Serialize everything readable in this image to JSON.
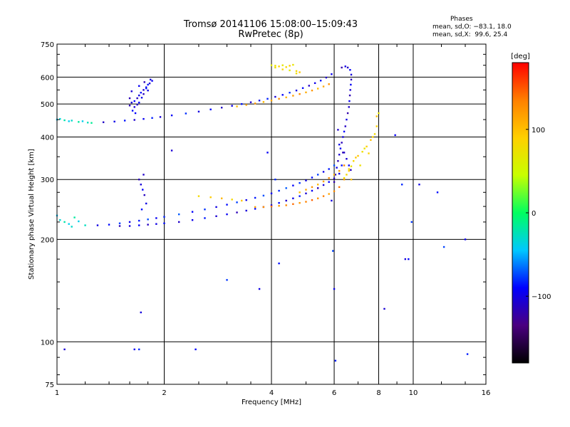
{
  "title_line1": "Tromsø 20141106 15:08:00–15:09:43",
  "title_line2": "RwPretec (8p)",
  "stats": {
    "title": "Phases",
    "line_o": "mean, sd,O: −83.1, 18.0",
    "line_x": "mean, sd,X:  99.6, 25.4"
  },
  "chart_data": {
    "type": "scatter",
    "xlabel": "Frequency [MHz]",
    "ylabel": "Stationary phase Virtual Height [km]",
    "x_scale": "log",
    "y_scale": "log",
    "xlim": [
      1,
      16
    ],
    "ylim": [
      75,
      750
    ],
    "x_ticks": [
      1,
      2,
      4,
      6,
      8,
      10,
      16
    ],
    "y_ticks": [
      75,
      100,
      200,
      300,
      400,
      500,
      600,
      750
    ],
    "x_grid": [
      2,
      4,
      6,
      8,
      10
    ],
    "y_grid": [
      100,
      200,
      300,
      400,
      500,
      600
    ],
    "grid": true,
    "colorbar": {
      "label": "[deg]",
      "range": [
        -180,
        180
      ],
      "ticks": [
        -100,
        0,
        100
      ],
      "colormap": [
        "#000000",
        "#4a0080",
        "#0000ff",
        "#00c8ff",
        "#00ff60",
        "#c8ff00",
        "#ffd000",
        "#ff8000",
        "#ff0000"
      ]
    },
    "series": [
      {
        "x": [
          1.35,
          1.45,
          1.55,
          1.65,
          1.75,
          1.85,
          1.95,
          2.1,
          2.3,
          2.5,
          2.7,
          2.9,
          3.1,
          3.3,
          3.5,
          3.7,
          3.9,
          4.1,
          4.3,
          4.5,
          4.7,
          4.9,
          5.1,
          5.3,
          5.5,
          5.7,
          5.9
        ],
        "y": [
          442,
          444,
          447,
          449,
          452,
          455,
          458,
          463,
          469,
          475,
          482,
          488,
          494,
          500,
          506,
          512,
          518,
          525,
          532,
          540,
          548,
          557,
          566,
          576,
          586,
          598,
          612
        ],
        "phase": -95
      },
      {
        "x": [
          3.2,
          3.4,
          3.6,
          3.8,
          4.0,
          4.2,
          4.4,
          4.6,
          4.8,
          5.0,
          5.2,
          5.4,
          5.6,
          5.8
        ],
        "y": [
          492,
          497,
          502,
          507,
          512,
          518,
          523,
          529,
          535,
          541,
          548,
          555,
          563,
          572
        ],
        "phase": 115
      },
      {
        "x": [
          1.0,
          1.02,
          1.05,
          1.08,
          1.1,
          1.15,
          1.18,
          1.22,
          1.25
        ],
        "y": [
          450,
          452,
          448,
          445,
          447,
          443,
          445,
          441,
          440
        ],
        "phase": -30
      },
      {
        "x": [
          1.6,
          1.62,
          1.65,
          1.68,
          1.7,
          1.72,
          1.75,
          1.78,
          1.8,
          1.82,
          1.85,
          1.6,
          1.65,
          1.7,
          1.75,
          1.8,
          1.63,
          1.68,
          1.73,
          1.78,
          1.62,
          1.7,
          1.76,
          1.83,
          1.66
        ],
        "y": [
          495,
          505,
          510,
          520,
          530,
          540,
          550,
          560,
          570,
          575,
          585,
          520,
          490,
          505,
          535,
          548,
          478,
          498,
          522,
          556,
          545,
          565,
          580,
          590,
          470
        ],
        "phase": -100
      },
      {
        "x": [
          4.0,
          4.1,
          4.2,
          4.3,
          4.4,
          4.5,
          4.6,
          4.7,
          4.8,
          4.1,
          4.3,
          4.5,
          4.7
        ],
        "y": [
          650,
          648,
          645,
          650,
          642,
          648,
          652,
          625,
          620,
          640,
          632,
          628,
          615
        ],
        "phase": 80
      },
      {
        "x": [
          6.0,
          6.05,
          6.1,
          6.15,
          6.2,
          6.25,
          6.3,
          6.35,
          6.4,
          6.45,
          6.5,
          6.55,
          6.6,
          6.62,
          6.64,
          6.66,
          6.68,
          6.7,
          6.7,
          6.65,
          6.55,
          6.45,
          6.3,
          6.15,
          6.2,
          6.35,
          6.5,
          6.6,
          6.68
        ],
        "y": [
          295,
          310,
          325,
          340,
          355,
          370,
          385,
          400,
          415,
          430,
          450,
          470,
          490,
          510,
          530,
          550,
          570,
          590,
          610,
          630,
          640,
          645,
          640,
          420,
          380,
          360,
          345,
          330,
          320
        ],
        "phase": -105
      },
      {
        "x": [
          6.4,
          6.5,
          6.6,
          6.7,
          6.8,
          7.0,
          7.2,
          7.4,
          7.6,
          7.8,
          7.9,
          8.0,
          6.6,
          6.9,
          7.3,
          7.7,
          6.7,
          7.1,
          7.5,
          7.9
        ],
        "y": [
          303,
          310,
          318,
          328,
          340,
          352,
          362,
          375,
          392,
          408,
          430,
          470,
          322,
          348,
          370,
          400,
          300,
          330,
          358,
          460
        ],
        "phase": 85
      },
      {
        "x": [
          1.5,
          1.6,
          1.7,
          1.8,
          1.9,
          2.0,
          2.2,
          2.4,
          2.6,
          2.8,
          3.0,
          3.2,
          3.4,
          3.6,
          3.8,
          4.0,
          4.2,
          4.4,
          4.6,
          4.8,
          5.0,
          5.2,
          5.4,
          5.6,
          5.8,
          6.0,
          6.2,
          6.3,
          6.4
        ],
        "y": [
          219,
          219,
          220,
          221,
          222,
          223,
          225,
          228,
          231,
          234,
          237,
          240,
          243,
          246,
          249,
          252,
          256,
          260,
          264,
          268,
          273,
          278,
          283,
          289,
          295,
          302,
          312,
          330,
          360
        ],
        "phase": -100
      },
      {
        "x": [
          1.3,
          1.4,
          1.5,
          1.6,
          1.7,
          1.8,
          1.9,
          2.0,
          2.2,
          2.4,
          2.6,
          2.8,
          3.0,
          3.2,
          3.4,
          3.6,
          3.8,
          4.0,
          4.2,
          4.4,
          4.6,
          4.8,
          5.0,
          5.2,
          5.4,
          5.6,
          5.8,
          6.0
        ],
        "y": [
          220,
          221,
          223,
          225,
          227,
          229,
          231,
          233,
          237,
          241,
          245,
          249,
          253,
          257,
          261,
          265,
          269,
          273,
          278,
          283,
          288,
          293,
          298,
          304,
          310,
          316,
          322,
          330
        ],
        "phase": -85
      },
      {
        "x": [
          3.6,
          3.8,
          4.0,
          4.2,
          4.4,
          4.6,
          4.8,
          5.0,
          5.2,
          5.4,
          5.6,
          5.8,
          6.0,
          6.2,
          6.4
        ],
        "y": [
          249,
          249,
          250,
          251,
          252,
          254,
          256,
          258,
          261,
          264,
          268,
          272,
          277,
          285,
          300
        ],
        "phase": 130
      },
      {
        "x": [
          4.8,
          5.0,
          5.2,
          5.4,
          5.6,
          5.8,
          6.0,
          6.2,
          6.4
        ],
        "y": [
          275,
          280,
          285,
          290,
          296,
          303,
          310,
          318,
          330
        ],
        "phase": 115
      },
      {
        "x": [
          2.5,
          2.7,
          2.9,
          3.1,
          3.3
        ],
        "y": [
          268,
          266,
          264,
          262,
          260
        ],
        "phase": 95
      },
      {
        "x": [
          1.0,
          1.02,
          1.05,
          1.08,
          1.1,
          1.12,
          1.15,
          1.2
        ],
        "y": [
          235,
          228,
          225,
          222,
          218,
          232,
          226,
          220
        ],
        "phase": -30
      },
      {
        "x": [
          1.7,
          1.72,
          1.74,
          1.76,
          1.78,
          1.73,
          1.75
        ],
        "y": [
          300,
          290,
          280,
          270,
          255,
          245,
          310
        ],
        "phase": -100
      },
      {
        "x": [
          1.05,
          1.65,
          1.7,
          1.72,
          2.45,
          3.0,
          3.7,
          4.2,
          5.95,
          6.0,
          6.05,
          8.3,
          8.9,
          9.3,
          9.5,
          9.7,
          9.9,
          10.4,
          11.7,
          12.2,
          14.0,
          14.2,
          2.1,
          3.9,
          4.1,
          5.9
        ],
        "y": [
          95,
          95,
          95,
          122,
          95,
          152,
          143,
          170,
          185,
          143,
          88,
          125,
          405,
          290,
          175,
          175,
          225,
          290,
          275,
          190,
          200,
          92,
          365,
          360,
          300,
          260
        ],
        "phase": -90
      }
    ]
  }
}
